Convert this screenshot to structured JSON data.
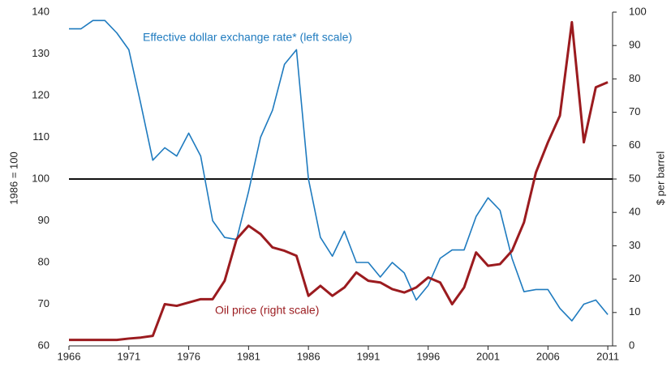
{
  "chart_data": {
    "type": "line",
    "annotations": [
      "Effective dollar exchange rate*  (left scale)",
      "Oil price  (right scale)"
    ],
    "y_label": "1986 = 100",
    "y2_label": "$ per barrel",
    "x": [
      1966,
      1967,
      1968,
      1969,
      1970,
      1971,
      1972,
      1973,
      1974,
      1975,
      1976,
      1977,
      1978,
      1979,
      1980,
      1981,
      1982,
      1983,
      1984,
      1985,
      1986,
      1987,
      1988,
      1989,
      1990,
      1991,
      1992,
      1993,
      1994,
      1995,
      1996,
      1997,
      1998,
      1999,
      2000,
      2001,
      2002,
      2003,
      2004,
      2005,
      2006,
      2007,
      2008,
      2009,
      2010,
      2011
    ],
    "xlim": [
      1966,
      2011.4
    ],
    "xticks": [
      1966,
      1971,
      1976,
      1981,
      1986,
      1991,
      1996,
      2001,
      2006,
      2011
    ],
    "ylim": [
      60,
      140
    ],
    "yticks": [
      60,
      70,
      80,
      90,
      100,
      110,
      120,
      130,
      140
    ],
    "y2lim": [
      0,
      100
    ],
    "y2ticks": [
      0,
      10,
      20,
      30,
      40,
      50,
      60,
      70,
      80,
      90,
      100
    ],
    "reference_line": 100,
    "series": [
      {
        "name": "Effective dollar exchange rate",
        "color": "#1f7bbf",
        "values": [
          136,
          136,
          138,
          138,
          135,
          131,
          118,
          104.5,
          107.5,
          105.5,
          111,
          105.5,
          90,
          86,
          85.5,
          97,
          110,
          116.5,
          127.5,
          131,
          100,
          86,
          81.5,
          87.5,
          80,
          80,
          76.5,
          80,
          77.5,
          71,
          74.5,
          81,
          83,
          83,
          91,
          95.5,
          92.5,
          81,
          73,
          73.5,
          73.5,
          69,
          66,
          70,
          71,
          67.5
        ]
      },
      {
        "name": "Oil price",
        "color": "#9b1b1f",
        "axis": "y2",
        "values": [
          1.8,
          1.8,
          1.8,
          1.8,
          1.8,
          2.2,
          2.5,
          3,
          12.5,
          12,
          13,
          14,
          14,
          19.5,
          32,
          36,
          33.5,
          29.5,
          28.5,
          27,
          15,
          18,
          15,
          17.5,
          22,
          19.5,
          19,
          17,
          16,
          17.5,
          20.5,
          19,
          12.5,
          17.5,
          28,
          24,
          24.5,
          28.5,
          37,
          52,
          61,
          69,
          97,
          61,
          77.5,
          79
        ]
      }
    ]
  }
}
